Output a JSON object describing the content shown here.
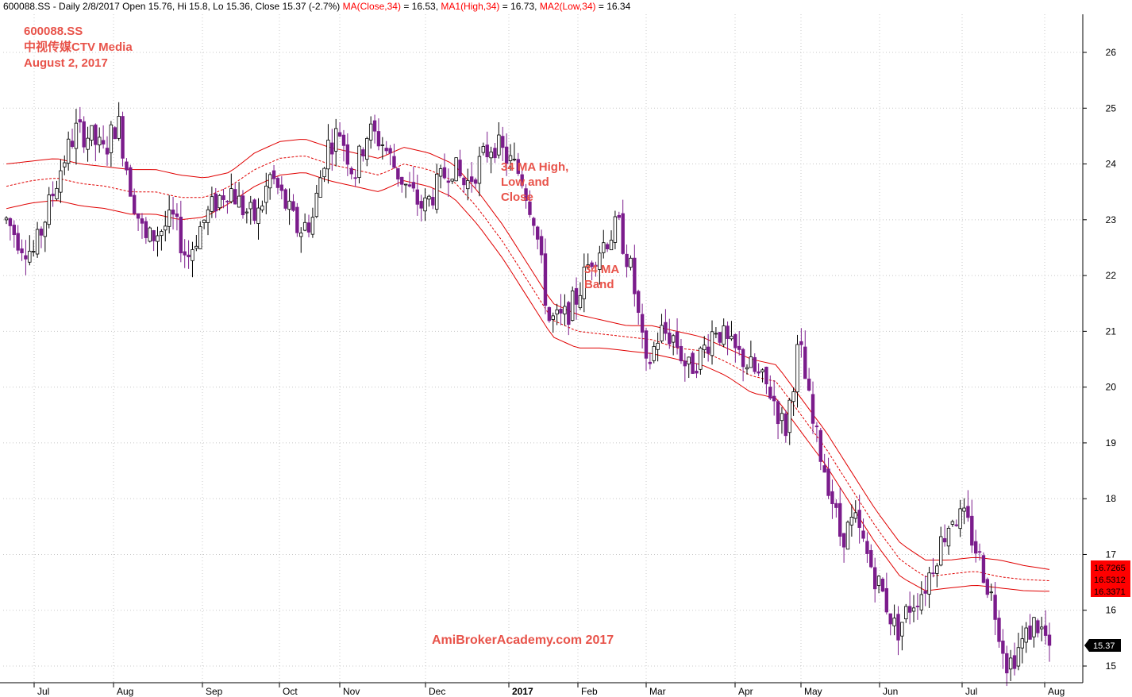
{
  "header": {
    "symbol_info": "600088.SS - Daily 2/8/2017 Open 15.76, Hi 15.8, Lo 15.36, Close 15.37 (-2.7%)",
    "ma_close": "MA(Close,34)",
    "ma_close_val": " = 16.53,",
    "ma_high": "MA1(High,34)",
    "ma_high_val": " = 16.73,",
    "ma_low": "MA2(Low,34)",
    "ma_low_val": " = 16.34"
  },
  "title": {
    "line1": "600088.SS",
    "line2": "中视传媒CTV Media",
    "line3": "August 2, 2017"
  },
  "annotations": {
    "ma_hlc_1": "34 MA High,",
    "ma_hlc_2": "Low and",
    "ma_hlc_3": "Close",
    "band_1": "34 MA",
    "band_2": "Band",
    "watermark": "AmiBrokerAcademy.com 2017"
  },
  "colors": {
    "candle_up": "#ffffff",
    "candle_down": "#7b1c8c",
    "ma_line": "#e00000",
    "grid": "#c8c8c8",
    "annotation": "#e8534a",
    "price_badge": "#ff0000"
  },
  "chart_data": {
    "type": "candlestick",
    "ylim": [
      14.8,
      26.5
    ],
    "y_ticks": [
      "15",
      "16",
      "17",
      "18",
      "19",
      "20",
      "21",
      "22",
      "23",
      "24",
      "25",
      "26"
    ],
    "x_labels": [
      "Jul",
      "Aug",
      "Sep",
      "Oct",
      "Nov",
      "Dec",
      "2017",
      "Feb",
      "Mar",
      "Apr",
      "May",
      "Jun",
      "Jul",
      "Aug"
    ],
    "last_close": "15.37",
    "ma_badges": [
      "16.7265",
      "16.5312",
      "16.3371"
    ],
    "grid": true,
    "close_path": [
      23.0,
      22.6,
      22.4,
      23.2,
      24.0,
      24.6,
      24.5,
      24.2,
      24.8,
      23.5,
      22.6,
      22.8,
      23.0,
      22.3,
      22.9,
      23.3,
      23.6,
      23.2,
      23.0,
      23.8,
      23.3,
      22.8,
      23.0,
      24.3,
      24.6,
      23.8,
      24.6,
      24.4,
      23.9,
      23.5,
      23.2,
      23.6,
      24.0,
      23.6,
      24.0,
      24.4,
      24.1,
      23.8,
      23.0,
      21.2,
      21.2,
      21.6,
      22.3,
      22.6,
      22.9,
      22.0,
      20.3,
      21.0,
      20.9,
      20.3,
      20.6,
      21.1,
      20.7,
      20.5,
      20.2,
      19.9,
      19.2,
      20.8,
      19.3,
      18.4,
      17.3,
      17.6,
      16.9,
      16.3,
      15.6,
      16.1,
      16.4,
      17.1,
      17.7,
      17.6,
      16.9,
      16.1,
      15.0,
      15.4,
      15.8,
      15.4
    ],
    "ma_high_path": [
      24.0,
      24.05,
      24.1,
      24.0,
      23.95,
      23.9,
      23.9,
      23.8,
      23.75,
      23.85,
      24.2,
      24.4,
      24.45,
      24.3,
      24.2,
      24.1,
      24.3,
      24.2,
      24.0,
      23.5,
      22.9,
      22.2,
      21.5,
      21.3,
      21.2,
      21.1,
      21.1,
      21.0,
      20.9,
      20.7,
      20.5,
      20.4,
      19.8,
      19.2,
      18.5,
      17.8,
      17.2,
      16.9,
      16.9,
      16.95,
      16.9,
      16.8,
      16.73
    ],
    "ma_close_path": [
      23.6,
      23.7,
      23.75,
      23.65,
      23.6,
      23.5,
      23.5,
      23.4,
      23.4,
      23.6,
      23.9,
      24.1,
      24.15,
      24.0,
      23.9,
      23.8,
      24.0,
      23.9,
      23.7,
      23.2,
      22.6,
      21.9,
      21.2,
      21.0,
      20.95,
      20.9,
      20.85,
      20.7,
      20.65,
      20.45,
      20.2,
      20.1,
      19.5,
      18.9,
      18.2,
      17.5,
      16.9,
      16.6,
      16.65,
      16.7,
      16.6,
      16.55,
      16.53
    ],
    "ma_low_path": [
      23.2,
      23.3,
      23.35,
      23.25,
      23.2,
      23.1,
      23.1,
      23.0,
      23.05,
      23.3,
      23.6,
      23.8,
      23.85,
      23.7,
      23.6,
      23.5,
      23.7,
      23.6,
      23.4,
      22.9,
      22.3,
      21.6,
      20.9,
      20.7,
      20.7,
      20.65,
      20.6,
      20.5,
      20.4,
      20.2,
      19.9,
      19.8,
      19.2,
      18.6,
      17.9,
      17.2,
      16.6,
      16.35,
      16.4,
      16.45,
      16.4,
      16.35,
      16.34
    ]
  }
}
